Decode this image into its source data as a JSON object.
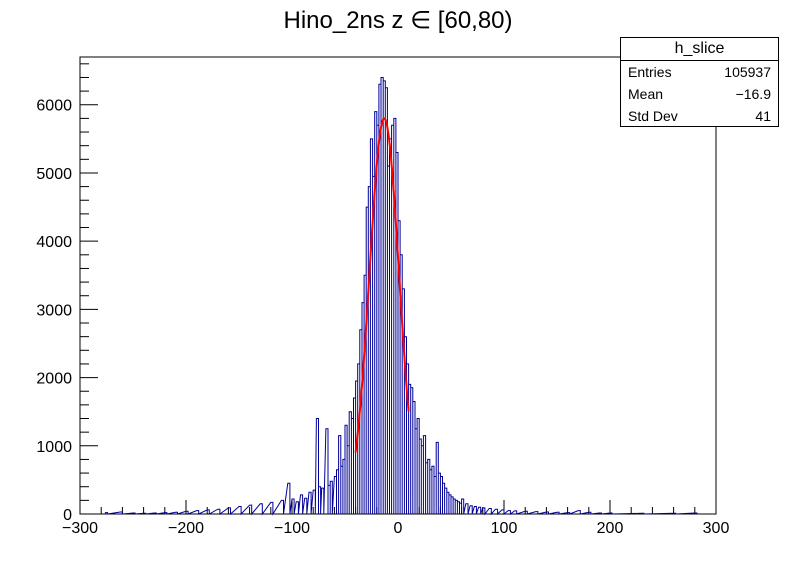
{
  "chart_data": {
    "type": "histogram",
    "title": "Hino_2ns z  ∈ [60,80)",
    "xlim": [
      -300,
      300
    ],
    "ylim": [
      0,
      6700
    ],
    "x_ticks": [
      -300,
      -200,
      -100,
      0,
      100,
      200,
      300
    ],
    "y_ticks": [
      0,
      1000,
      2000,
      3000,
      4000,
      5000,
      6000
    ],
    "bin_width": 2,
    "histogram_color": "#000099",
    "fit_color": "#ff0000",
    "histogram": [
      [
        -276,
        20
      ],
      [
        -262,
        30
      ],
      [
        -250,
        15
      ],
      [
        -240,
        10
      ],
      [
        -230,
        15
      ],
      [
        -220,
        20
      ],
      [
        -210,
        25
      ],
      [
        -200,
        40
      ],
      [
        -190,
        50
      ],
      [
        -180,
        60
      ],
      [
        -170,
        70
      ],
      [
        -160,
        90
      ],
      [
        -150,
        110
      ],
      [
        -140,
        130
      ],
      [
        -130,
        150
      ],
      [
        -120,
        170
      ],
      [
        -110,
        200
      ],
      [
        -104,
        450
      ],
      [
        -100,
        220
      ],
      [
        -96,
        180
      ],
      [
        -92,
        280
      ],
      [
        -88,
        230
      ],
      [
        -84,
        320
      ],
      [
        -80,
        350
      ],
      [
        -77,
        1400
      ],
      [
        -75,
        400
      ],
      [
        -72,
        380
      ],
      [
        -68,
        1250
      ],
      [
        -66,
        420
      ],
      [
        -64,
        480
      ],
      [
        -60,
        550
      ],
      [
        -58,
        650
      ],
      [
        -56,
        1150
      ],
      [
        -54,
        700
      ],
      [
        -52,
        800
      ],
      [
        -50,
        1300
      ],
      [
        -48,
        1000
      ],
      [
        -46,
        1500
      ],
      [
        -44,
        1400
      ],
      [
        -42,
        1700
      ],
      [
        -40,
        1950
      ],
      [
        -38,
        2200
      ],
      [
        -36,
        2700
      ],
      [
        -34,
        3100
      ],
      [
        -32,
        3500
      ],
      [
        -30,
        4500
      ],
      [
        -28,
        4800
      ],
      [
        -26,
        5500
      ],
      [
        -24,
        4950
      ],
      [
        -22,
        5900
      ],
      [
        -20,
        5700
      ],
      [
        -18,
        6300
      ],
      [
        -16,
        6400
      ],
      [
        -14,
        6350
      ],
      [
        -12,
        6250
      ],
      [
        -10,
        5100
      ],
      [
        -8,
        5500
      ],
      [
        -6,
        5700
      ],
      [
        -4,
        5800
      ],
      [
        -2,
        5300
      ],
      [
        0,
        4300
      ],
      [
        2,
        3800
      ],
      [
        4,
        3300
      ],
      [
        6,
        2600
      ],
      [
        8,
        2200
      ],
      [
        10,
        1900
      ],
      [
        12,
        1850
      ],
      [
        14,
        1650
      ],
      [
        16,
        1250
      ],
      [
        18,
        1400
      ],
      [
        20,
        1100
      ],
      [
        22,
        1000
      ],
      [
        24,
        1150
      ],
      [
        26,
        750
      ],
      [
        28,
        800
      ],
      [
        30,
        650
      ],
      [
        32,
        700
      ],
      [
        34,
        550
      ],
      [
        36,
        1050
      ],
      [
        38,
        600
      ],
      [
        40,
        550
      ],
      [
        42,
        450
      ],
      [
        44,
        380
      ],
      [
        46,
        320
      ],
      [
        48,
        280
      ],
      [
        50,
        250
      ],
      [
        52,
        220
      ],
      [
        54,
        200
      ],
      [
        56,
        180
      ],
      [
        58,
        160
      ],
      [
        60,
        220
      ],
      [
        64,
        150
      ],
      [
        68,
        120
      ],
      [
        72,
        110
      ],
      [
        76,
        100
      ],
      [
        80,
        90
      ],
      [
        86,
        80
      ],
      [
        92,
        70
      ],
      [
        98,
        60
      ],
      [
        104,
        50
      ],
      [
        110,
        45
      ],
      [
        120,
        40
      ],
      [
        130,
        35
      ],
      [
        140,
        30
      ],
      [
        150,
        25
      ],
      [
        160,
        20
      ],
      [
        170,
        50
      ],
      [
        180,
        25
      ],
      [
        190,
        15
      ],
      [
        200,
        15
      ],
      [
        230,
        10
      ],
      [
        260,
        10
      ],
      [
        280,
        15
      ]
    ],
    "fit": {
      "type": "gaussian",
      "amplitude": 5800,
      "mean": -13,
      "sigma": 14,
      "range": [
        -40,
        10
      ]
    },
    "stats": {
      "name": "h_slice",
      "rows": [
        {
          "label": "Entries",
          "value": "105937"
        },
        {
          "label": "Mean",
          "value": "−16.9"
        },
        {
          "label": "Std Dev",
          "value": "41"
        }
      ]
    }
  }
}
